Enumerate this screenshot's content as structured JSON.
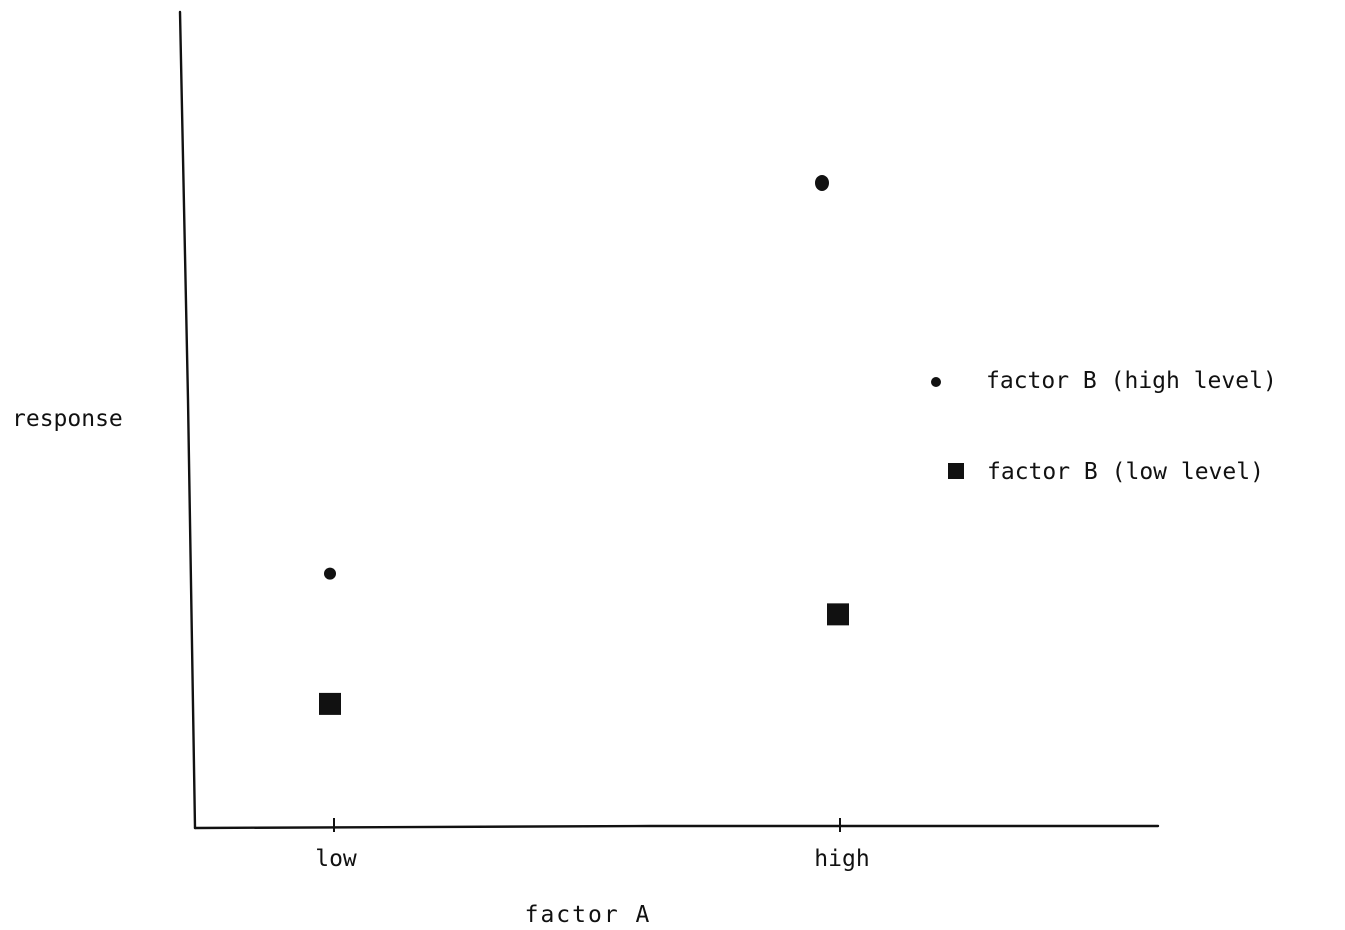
{
  "chart_data": {
    "type": "scatter",
    "xlabel": "factor A",
    "ylabel": "response",
    "categories": [
      "low",
      "high"
    ],
    "series": [
      {
        "name": "factor B (high level)",
        "marker": "circle",
        "values": [
          31,
          79
        ]
      },
      {
        "name": "factor B (low level)",
        "marker": "square",
        "values": [
          15,
          26
        ]
      }
    ],
    "ylim": [
      0,
      100
    ],
    "grid": false,
    "legend": "right",
    "colors": {
      "ink": "#111111",
      "background": "#ffffff"
    }
  }
}
